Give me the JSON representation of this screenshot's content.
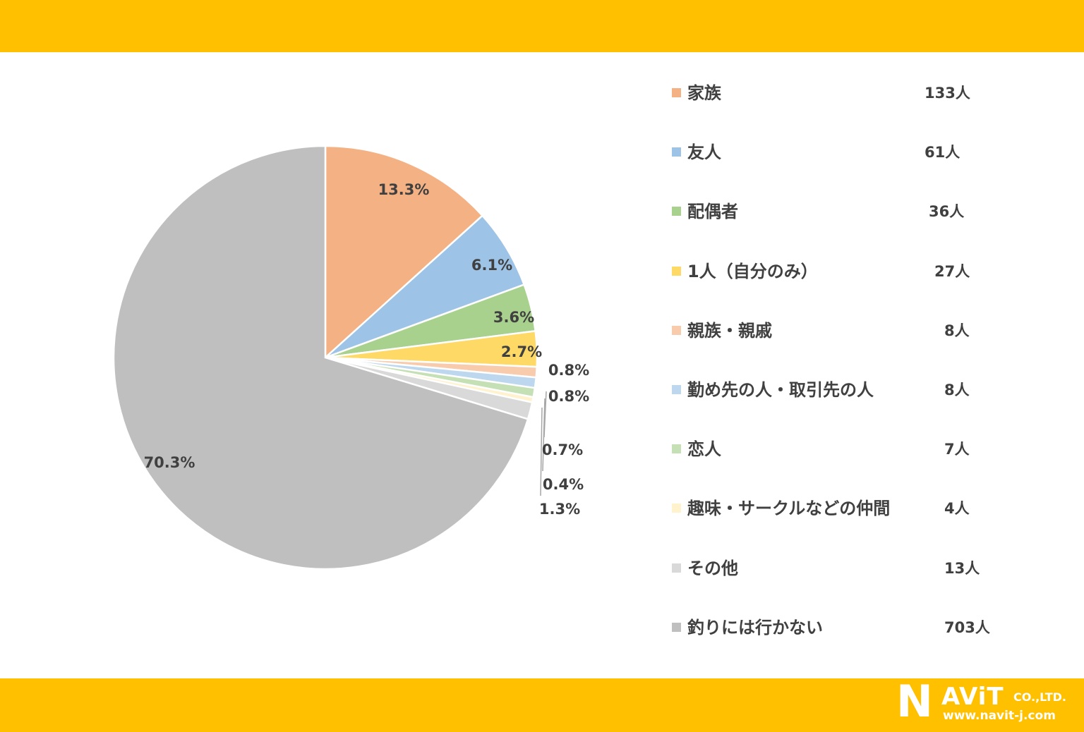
{
  "chart_data": {
    "type": "pie",
    "title": "",
    "categories": [
      "家族",
      "友人",
      "配偶者",
      "1人（自分のみ）",
      "親族・親戚",
      "勤め先の人・取引先の人",
      "恋人",
      "趣味・サークルなどの仲間",
      "その他",
      "釣りには行かない"
    ],
    "values": [
      133,
      61,
      36,
      27,
      8,
      8,
      7,
      4,
      13,
      703
    ],
    "counts": [
      "133人",
      "61人",
      "36人",
      "27人",
      "8人",
      "8人",
      "7人",
      "4人",
      "13人",
      "703人"
    ],
    "percent_labels": [
      "13.3%",
      "6.1%",
      "3.6%",
      "2.7%",
      "0.8%",
      "0.8%",
      "0.7%",
      "0.4%",
      "1.3%",
      "70.3%"
    ],
    "colors": [
      "#F4B183",
      "#9DC3E6",
      "#A9D18E",
      "#FFD966",
      "#F8CBAD",
      "#BDD7EE",
      "#C5E0B4",
      "#FFF2CC",
      "#D9D9D9",
      "#BFBFBF"
    ],
    "legend_position": "right"
  },
  "logo": {
    "initial": "N",
    "rest": "AViT",
    "suffix": "CO.,LTD.",
    "url": "www.navit-j.com"
  }
}
